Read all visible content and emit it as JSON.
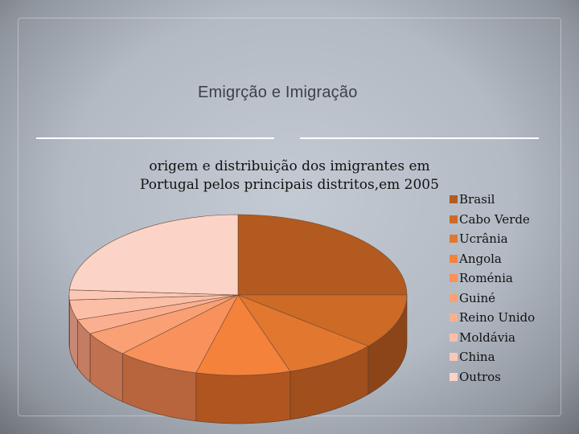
{
  "slide": {
    "title": "Emigrção e Imigração"
  },
  "chart_data": {
    "type": "pie",
    "title_lines": [
      "origem e  distribuição dos imigrantes em",
      "Portugal pelos principais distritos,em 2005"
    ],
    "categories": [
      "Brasil",
      "Cabo Verde",
      "Ucrânia",
      "Angola",
      "Roménia",
      "Guiné",
      "Reino Unido",
      "Moldávia",
      "China",
      "Outros"
    ],
    "values": [
      25,
      11,
      9,
      9,
      8,
      5,
      3,
      4,
      2,
      24
    ],
    "colors": [
      "#b25a20",
      "#cc6a26",
      "#e2772f",
      "#f5823a",
      "#f8915b",
      "#f9a074",
      "#fab090",
      "#fbbea6",
      "#fcc8b6",
      "#fcd3c7"
    ],
    "side_colors": [
      "#7a3d16",
      "#8c4519",
      "#a04f1d",
      "#b05520",
      "#b8643d",
      "#c0714f",
      "#c47c63",
      "#c88874",
      "#ca917f",
      "#cc9a89"
    ],
    "legend_position": "right"
  }
}
